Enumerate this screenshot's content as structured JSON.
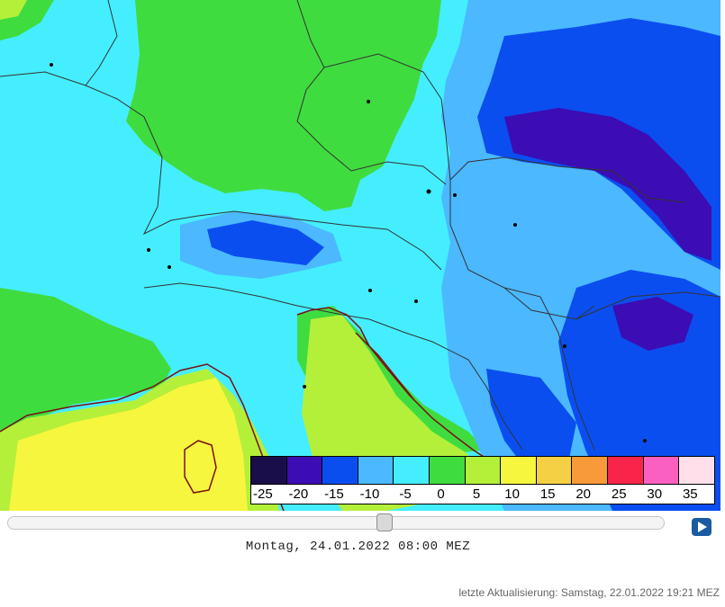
{
  "map": {
    "legend": {
      "bins": [
        {
          "label": "-25",
          "color": "#1a0e4a"
        },
        {
          "label": "-20",
          "color": "#3c0cb4"
        },
        {
          "label": "-15",
          "color": "#0b4ef0"
        },
        {
          "label": "-10",
          "color": "#4bb8ff"
        },
        {
          "label": "-5",
          "color": "#44eeff"
        },
        {
          "label": "0",
          "color": "#3fdc3f"
        },
        {
          "label": "5",
          "color": "#b4f03a"
        },
        {
          "label": "10",
          "color": "#f6f63e"
        },
        {
          "label": "15",
          "color": "#f6d044"
        },
        {
          "label": "20",
          "color": "#f89a3a"
        },
        {
          "label": "25",
          "color": "#f8244a"
        },
        {
          "label": "30",
          "color": "#fa60c0"
        },
        {
          "label": "35",
          "color": "#ffe0ea"
        }
      ]
    }
  },
  "timeline": {
    "position": 0.575,
    "current_time": "Montag, 24.01.2022 08:00 MEZ"
  },
  "footer": {
    "last_update": "letzte Aktualisierung: Samstag, 22.01.2022 19:21 MEZ"
  },
  "icons": {
    "play": "play-icon"
  }
}
